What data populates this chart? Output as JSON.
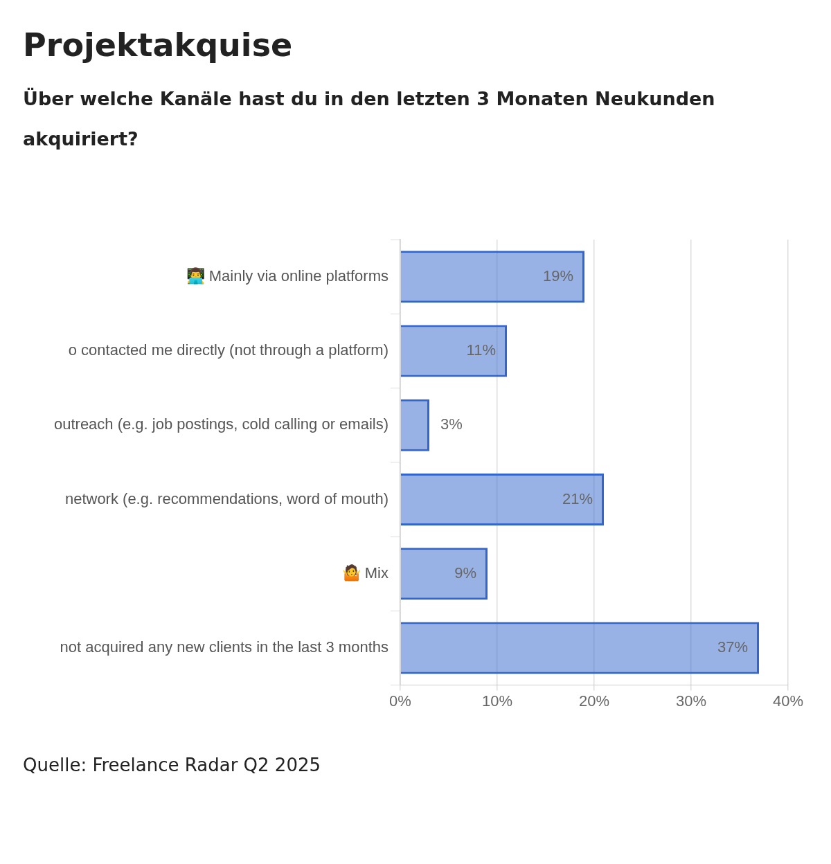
{
  "chart_data": {
    "type": "bar",
    "orientation": "horizontal",
    "title": "Projektakquise",
    "subtitle": "Über welche Kanäle hast du in den letzten 3 Monaten Neukunden akquiriert?",
    "categories": [
      "👨‍💻 Mainly via online platforms",
      "o contacted me directly (not through a platform)",
      "outreach (e.g. job postings, cold calling or emails)",
      "network (e.g. recommendations, word of mouth)",
      "🤷 Mix",
      "not acquired any new clients in the last 3 months"
    ],
    "values": [
      19,
      11,
      3,
      21,
      9,
      37
    ],
    "color": "#3366cc",
    "value_labels": [
      "19%",
      "11%",
      "3%",
      "21%",
      "9%",
      "37%"
    ],
    "xlim": [
      0,
      40
    ],
    "xticks": [
      {
        "value": 0,
        "label": "0%"
      },
      {
        "value": 10,
        "label": "10%"
      },
      {
        "value": 20,
        "label": "20%"
      },
      {
        "value": 30,
        "label": "30%"
      },
      {
        "value": 40,
        "label": "40%"
      }
    ],
    "grid": "x",
    "legend": false,
    "annotations": [
      "Quelle: Freelance Radar Q2 2025"
    ]
  }
}
